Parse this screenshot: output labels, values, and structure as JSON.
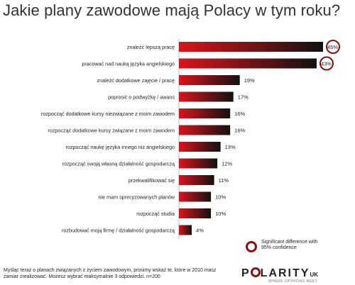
{
  "title": "Jakie plany zawodowe mają Polacy w tym roku?",
  "chart_data": {
    "type": "bar",
    "orientation": "horizontal",
    "title": "Jakie plany zawodowe mają Polacy w tym roku?",
    "categories": [
      "znaleźć lepszą pracę",
      "pracować nad nauką języka angielskiego",
      "znaleźć dodatkowe zajęcie / pracę",
      "poprosić o podwyżkę / awans",
      "rozpocząć dodatkowe kursy niezwiązane z moim zawodem",
      "rozpocząć dodatkowe kursy związane z moim zawodem",
      "rozpocząć naukę języka innego niż angielskiego",
      "rozpocząć swoją własną działalność gospodarczą",
      "przekwalifikować się",
      "nie mam sprecyzowanych planów",
      "rozpocząć studia",
      "rozbudować moją firmę / działalność gospodarczą"
    ],
    "values": [
      45,
      43,
      19,
      17,
      16,
      16,
      13,
      12,
      11,
      10,
      10,
      4
    ],
    "value_labels": [
      "45%",
      "43%",
      "19%",
      "17%",
      "16%",
      "16%",
      "13%",
      "12%",
      "11%",
      "10%",
      "10%",
      "4%"
    ],
    "significant": [
      true,
      true,
      false,
      false,
      false,
      false,
      false,
      false,
      false,
      false,
      false,
      false
    ],
    "xlim": [
      0,
      45
    ],
    "bar_gradient": [
      "#d8151c",
      "#111111"
    ],
    "significance_color": "#8a1111"
  },
  "legend": {
    "text": "Significant difference with 95% confidence"
  },
  "footnote": "Myśląc teraz o planach związanych z życiem zawodowym, prosimy wskaż te, które w 2010 masz zamiar zrealizować. Możesz wybrać maksymalnie 3 odpowiedzi. n=200",
  "logo": {
    "main": "P",
    "rest": "LARITY",
    "suffix": "UK",
    "tagline": "WHERE OPINIONS MEET"
  }
}
